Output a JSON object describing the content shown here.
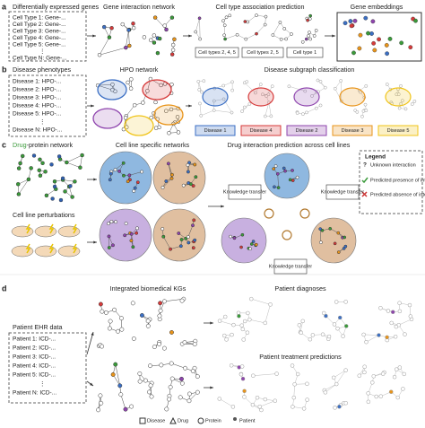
{
  "panel_a": {
    "letter": "a",
    "title": "Differentially expressed genes",
    "list": [
      "Cell Type 1: Gene-...",
      "Cell Type 2: Gene-...",
      "Cell Type 3: Gene-...",
      "Cell Type 4: Gene-...",
      "Cell Type 5: Gene-...",
      "⋮",
      "Cell Type N: Gene-..."
    ],
    "network_title": "Gene interaction network",
    "prediction_title": "Cell type association prediction",
    "prediction_labels": [
      "Cell types 2, 4, 5",
      "Cell types 2, 5",
      "Cell type 1"
    ],
    "embeddings_title": "Gene embeddings"
  },
  "panel_b": {
    "letter": "b",
    "title": "Disease phenotypes",
    "list": [
      "Disease 1: HPO-...",
      "Disease 2: HPO-...",
      "Disease 3: HPO-...",
      "Disease 4: HPO-...",
      "Disease 5: HPO-...",
      "⋮",
      "Disease N: HPO-..."
    ],
    "network_title": "HPO network",
    "classification_title": "Disease subgraph classification",
    "disease_labels": [
      "Disease 1",
      "Disease 4",
      "Disease 2",
      "Disease 3",
      "Disease 5"
    ]
  },
  "panel_c": {
    "letter": "c",
    "title_drug": "Drug",
    "title_rest": "-protein network",
    "perturbations_title": "Cell line perturbations",
    "networks_title": "Cell line specific networks",
    "prediction_title": "Drug interaction prediction across cell lines",
    "transfer_labels": [
      "Knowledge transfer",
      "Knowledge transfer",
      "Knowledge transfer"
    ],
    "legend": {
      "title": "Legend",
      "items": [
        "Unknown interaction",
        "Predicted presence of interaction",
        "Predicted absence of interaction"
      ]
    }
  },
  "panel_d": {
    "letter": "d",
    "kg_title": "Integrated biomedical KGs",
    "diagnoses_title": "Patient diagnoses",
    "ehr_title": "Patient EHR data",
    "list": [
      "Patient 1: ICD-...",
      "Patient 2: ICD-...",
      "Patient 3: ICD-...",
      "Patient 4: ICD-...",
      "Patient 5: ICD-...",
      "⋮",
      "Patient N: ICD-..."
    ],
    "treatment_title": "Patient treatment predictions",
    "legend": [
      "Disease",
      "Drug",
      "Protein",
      "Patient"
    ]
  }
}
